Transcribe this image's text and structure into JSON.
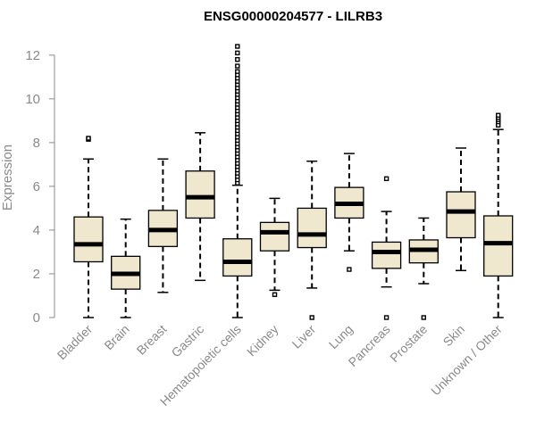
{
  "chart_data": {
    "type": "boxplot",
    "title": "ENSG00000204577 - LILRB3",
    "ylabel": "Expression",
    "xlabel": "",
    "ylim": [
      0,
      12.4
    ],
    "yticks": [
      0,
      2,
      4,
      6,
      8,
      10,
      12
    ],
    "grid": false,
    "colors": {
      "box_fill": "#efe8cf",
      "box_stroke": "#000000",
      "median": "#000000",
      "axis": "#8a8a8a"
    },
    "categories": [
      "Bladder",
      "Brain",
      "Breast",
      "Gastric",
      "Hematopoietic cells",
      "Kidney",
      "Liver",
      "Lung",
      "Pancreas",
      "Prostate",
      "Skin",
      "Unknown / Other"
    ],
    "boxes": [
      {
        "min": 0.0,
        "q1": 2.55,
        "median": 3.35,
        "q3": 4.6,
        "max": 7.25,
        "outliers": [
          8.15,
          8.2
        ]
      },
      {
        "min": 0.0,
        "q1": 1.3,
        "median": 2.0,
        "q3": 2.8,
        "max": 4.5,
        "outliers": []
      },
      {
        "min": 1.15,
        "q1": 3.25,
        "median": 4.0,
        "q3": 4.9,
        "max": 7.25,
        "outliers": []
      },
      {
        "min": 1.7,
        "q1": 4.55,
        "median": 5.5,
        "q3": 6.7,
        "max": 8.45,
        "outliers": []
      },
      {
        "min": 0.0,
        "q1": 1.9,
        "median": 2.55,
        "q3": 3.6,
        "max": 6.05,
        "outliers": [
          6.15,
          6.3,
          6.45,
          6.6,
          6.75,
          6.9,
          7.05,
          7.2,
          7.35,
          7.5,
          7.65,
          7.8,
          7.95,
          8.1,
          8.25,
          8.4,
          8.55,
          8.7,
          8.85,
          9.0,
          9.15,
          9.3,
          9.45,
          9.6,
          9.75,
          9.9,
          10.05,
          10.2,
          10.35,
          10.5,
          10.65,
          10.8,
          10.95,
          11.1,
          11.25,
          11.5,
          11.8,
          12.1,
          12.4
        ]
      },
      {
        "min": 1.25,
        "q1": 3.05,
        "median": 3.9,
        "q3": 4.35,
        "max": 5.45,
        "outliers": [
          1.05
        ]
      },
      {
        "min": 1.35,
        "q1": 3.2,
        "median": 3.8,
        "q3": 5.0,
        "max": 7.15,
        "outliers": [
          0.0
        ]
      },
      {
        "min": 3.05,
        "q1": 4.55,
        "median": 5.2,
        "q3": 5.95,
        "max": 7.5,
        "outliers": [
          2.2
        ]
      },
      {
        "min": 1.4,
        "q1": 2.25,
        "median": 3.0,
        "q3": 3.45,
        "max": 4.85,
        "outliers": [
          6.35,
          0.0
        ]
      },
      {
        "min": 1.55,
        "q1": 2.5,
        "median": 3.1,
        "q3": 3.55,
        "max": 4.55,
        "outliers": [
          0.0
        ]
      },
      {
        "min": 2.15,
        "q1": 3.65,
        "median": 4.85,
        "q3": 5.75,
        "max": 7.75,
        "outliers": []
      },
      {
        "min": 0.0,
        "q1": 1.9,
        "median": 3.4,
        "q3": 4.65,
        "max": 8.6,
        "outliers": [
          8.8,
          8.95,
          9.05,
          9.15,
          9.25
        ]
      }
    ]
  }
}
